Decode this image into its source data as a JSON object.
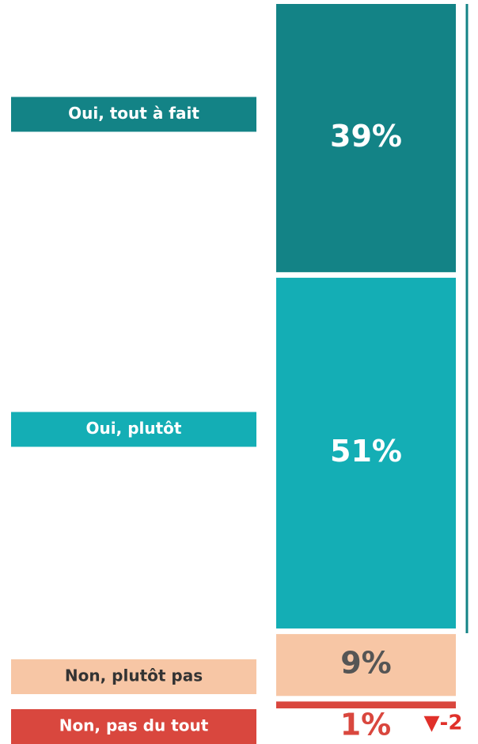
{
  "chart_data": {
    "type": "stacked_bar",
    "categories": [
      "Oui, tout à fait",
      "Oui, plutôt",
      "Non, plutôt pas",
      "Non, pas du tout"
    ],
    "values": [
      39,
      51,
      9,
      1
    ],
    "value_labels": [
      "39%",
      "51%",
      "9%",
      "1%"
    ],
    "colors": [
      "#138386",
      "#14aeb5",
      "#f7c6a5",
      "#d9473e"
    ],
    "annotation": "▼-2"
  }
}
